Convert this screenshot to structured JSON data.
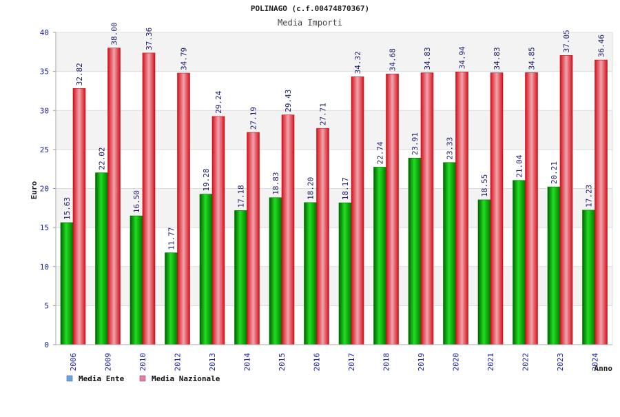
{
  "chart_data": {
    "type": "bar",
    "title": "POLINAGO (c.f.00474870367)",
    "subtitle": "Media Importi",
    "xlabel": "Anno",
    "ylabel": "Euro",
    "ylim": [
      0,
      40
    ],
    "yticks": [
      0,
      5,
      10,
      15,
      20,
      25,
      30,
      35,
      40
    ],
    "grid": true,
    "legend_position": "bottom-left",
    "categories": [
      "2006",
      "2009",
      "2010",
      "2012",
      "2013",
      "2014",
      "2015",
      "2016",
      "2017",
      "2018",
      "2019",
      "2020",
      "2021",
      "2022",
      "2023",
      "2024"
    ],
    "series": [
      {
        "name": "Media Ente",
        "color": "#00aa00",
        "legend_color": "#66a3e8",
        "values": [
          15.63,
          22.02,
          16.5,
          11.77,
          19.28,
          17.18,
          18.83,
          18.2,
          18.17,
          22.74,
          23.91,
          23.33,
          18.55,
          21.04,
          20.21,
          17.23
        ],
        "labels": [
          "15.63",
          "22.02",
          "16.50",
          "11.77",
          "19.28",
          "17.18",
          "18.83",
          "18.20",
          "18.17",
          "22.74",
          "23.91",
          "23.33",
          "18.55",
          "21.04",
          "20.21",
          "17.23"
        ]
      },
      {
        "name": "Media Nazionale",
        "color": "#ee1c24",
        "legend_color": "#e87aa8",
        "values": [
          32.82,
          38.0,
          37.36,
          34.79,
          29.24,
          27.19,
          29.43,
          27.71,
          34.32,
          34.68,
          34.83,
          34.94,
          34.83,
          34.85,
          37.05,
          36.46
        ],
        "labels": [
          "32.82",
          "38.00",
          "37.36",
          "34.79",
          "29.24",
          "27.19",
          "29.43",
          "27.71",
          "34.32",
          "34.68",
          "34.83",
          "34.94",
          "34.83",
          "34.85",
          "37.05",
          "36.46"
        ]
      }
    ]
  }
}
